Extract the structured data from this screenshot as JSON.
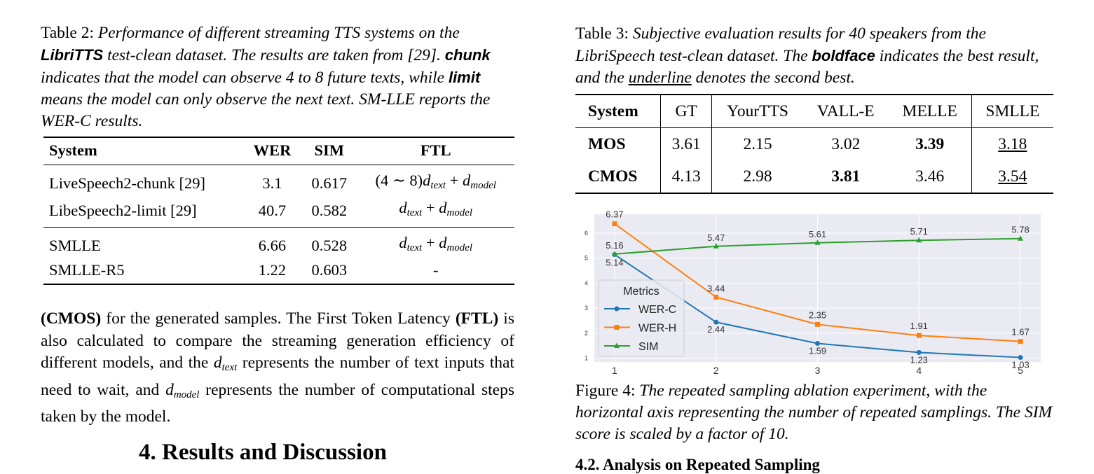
{
  "table2": {
    "caption_label": "Table 2: ",
    "caption_parts": [
      {
        "t": "Performance of different streaming TTS systems on the ",
        "b": false
      },
      {
        "t": "LibriTTS",
        "b": true
      },
      {
        "t": " test-clean dataset. The results are taken from [29]. ",
        "b": false
      },
      {
        "t": "chunk",
        "b": true
      },
      {
        "t": " indicates that the model can observe 4 to 8 future texts, while ",
        "b": false
      },
      {
        "t": "limit",
        "b": true
      },
      {
        "t": " means the model can only observe the next text. SM-LLE reports the WER-C results.",
        "b": false
      }
    ],
    "headers": [
      "System",
      "WER",
      "SIM",
      "FTL"
    ],
    "rows": [
      {
        "system": "LiveSpeech2-chunk [29]",
        "wer": "3.1",
        "sim": "0.617",
        "ftl_prefix": "(4 ∼ 8)"
      },
      {
        "system": "LibeSpeech2-limit [29]",
        "wer": "40.7",
        "sim": "0.582",
        "ftl_prefix": ""
      },
      {
        "system": "SMLLE",
        "wer": "6.66",
        "sim": "0.528",
        "ftl_prefix": ""
      },
      {
        "system": "SMLLE-R5",
        "wer": "1.22",
        "sim": "0.603",
        "ftl_dash": "-"
      }
    ],
    "ftl_d": "d",
    "ftl_text_sub": "text",
    "ftl_plus": " + ",
    "ftl_model_sub": "model"
  },
  "body": {
    "parts": [
      {
        "t": "(CMOS)",
        "b": true
      },
      {
        "t": " for the generated samples. The First Token Latency ",
        "b": false
      },
      {
        "t": "(FTL)",
        "b": true
      },
      {
        "t": " is also calculated to compare the streaming generation efficiency of different models, and the ",
        "b": false
      },
      {
        "t": "d",
        "m": "text"
      },
      {
        "t": " represents the number of text inputs that need to wait, and ",
        "b": false
      },
      {
        "t": "d",
        "m": "model"
      },
      {
        "t": " represents the number of computational steps taken by the model.",
        "b": false
      }
    ]
  },
  "section_heading": "4.  Results and Discussion",
  "table3": {
    "caption_label": "Table 3: ",
    "caption_parts": [
      {
        "t": "Subjective evaluation results for 40 speakers from the LibriSpeech test-clean dataset. The ",
        "s": ""
      },
      {
        "t": "boldface",
        "s": "b"
      },
      {
        "t": " indicates the best result, and the ",
        "s": ""
      },
      {
        "t": "underline",
        "s": "u"
      },
      {
        "t": " denotes the second best.",
        "s": ""
      }
    ],
    "header": [
      "System",
      "GT",
      "YourTTS",
      "VALL-E",
      "MELLE",
      "SMLLE"
    ],
    "rows": [
      {
        "label": "MOS",
        "values": [
          "3.61",
          "2.15",
          "3.02",
          "3.39",
          "3.18"
        ],
        "best": 3,
        "second": 4
      },
      {
        "label": "CMOS",
        "values": [
          "4.13",
          "2.98",
          "3.81",
          "3.46",
          "3.54"
        ],
        "best": 2,
        "second": 4
      }
    ]
  },
  "chart_data": {
    "type": "line",
    "x": [
      1,
      2,
      3,
      4,
      5
    ],
    "xticks": [
      "1",
      "2",
      "3",
      "4",
      "5"
    ],
    "yticks": [
      "1",
      "2",
      "3",
      "4",
      "5",
      "6"
    ],
    "ylim": [
      0.85,
      6.75
    ],
    "grid": true,
    "legend_title": "Metrics",
    "legend_position": "lower-left",
    "series": [
      {
        "name": "WER-C",
        "color": "#1f77b4",
        "marker": "circle",
        "values": [
          5.14,
          2.44,
          1.59,
          1.23,
          1.03
        ],
        "labels": [
          "5.14",
          "2.44",
          "1.59",
          "1.23",
          "1.03"
        ]
      },
      {
        "name": "WER-H",
        "color": "#ff7f0e",
        "marker": "square",
        "values": [
          6.37,
          3.44,
          2.35,
          1.91,
          1.67
        ],
        "labels": [
          "6.37",
          "3.44",
          "2.35",
          "1.91",
          "1.67"
        ]
      },
      {
        "name": "SIM",
        "color": "#2ca02c",
        "marker": "triangle",
        "values": [
          5.16,
          5.47,
          5.61,
          5.71,
          5.78
        ],
        "labels": [
          "5.16",
          "5.47",
          "5.61",
          "5.71",
          "5.78"
        ]
      }
    ]
  },
  "figure4": {
    "caption_label": "Figure 4: ",
    "caption_text": "The repeated sampling ablation experiment, with the horizontal axis representing the number of repeated samplings. The SIM score is scaled by a factor of 10."
  },
  "sub_heading": "4.2.  Analysis on Repeated Sampling"
}
